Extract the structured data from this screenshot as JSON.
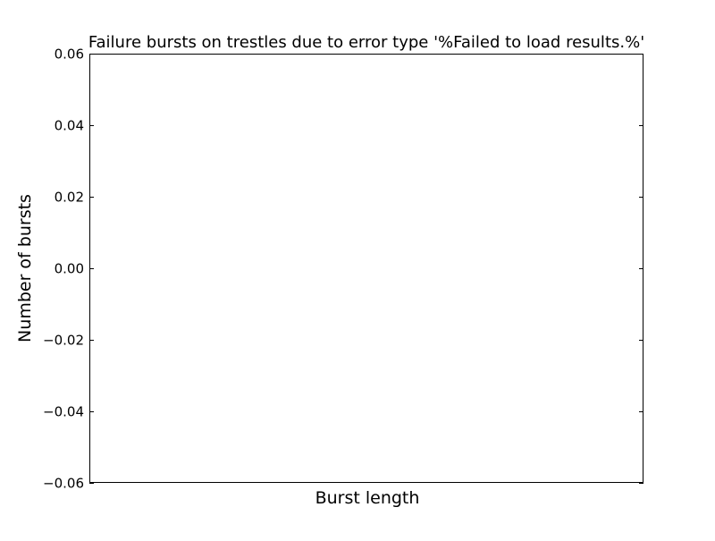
{
  "chart_data": {
    "type": "bar",
    "title": "Failure bursts on trestles due to error type '%Failed to load results.%'",
    "xlabel": "Burst length",
    "ylabel": "Number of bursts",
    "ylim": [
      -0.06,
      0.06
    ],
    "y_ticks": [
      {
        "value": 0.06,
        "label": "0.06"
      },
      {
        "value": 0.04,
        "label": "0.04"
      },
      {
        "value": 0.02,
        "label": "0.02"
      },
      {
        "value": 0.0,
        "label": "0.00"
      },
      {
        "value": -0.02,
        "label": "−0.02"
      },
      {
        "value": -0.04,
        "label": "−0.04"
      },
      {
        "value": -0.06,
        "label": "−0.06"
      }
    ],
    "categories": [],
    "values": [],
    "grid": false,
    "legend": "none"
  }
}
